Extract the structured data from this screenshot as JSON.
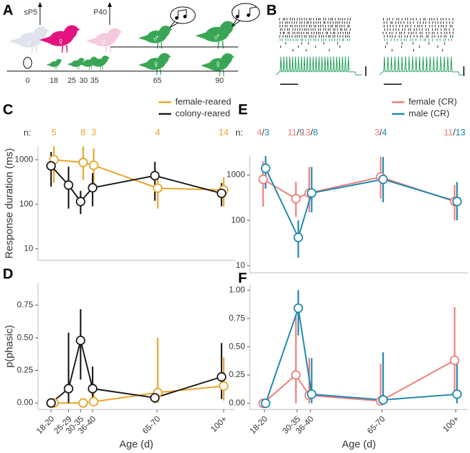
{
  "panel_labels": [
    "A",
    "B",
    "C",
    "D",
    "E",
    "F"
  ],
  "schematic": {
    "time_markers": [
      "≤P5",
      "P40"
    ],
    "ages": [
      0,
      18,
      25,
      30,
      35,
      65,
      90
    ],
    "male_symbol": "♂",
    "female_symbol": "♀"
  },
  "chart_data": [
    {
      "type": "line",
      "ylabel": "Response duration (ms)",
      "log_y": true,
      "ylim": [
        5.5,
        2000
      ],
      "yticks": [
        10,
        100,
        1000
      ],
      "xlim": [
        13,
        103
      ],
      "legend": "top-right",
      "n_label": "n:",
      "series": [
        {
          "name": "female-reared",
          "color": "#e8a426",
          "x": [
            20.3,
            33.7,
            38.5,
            67.8,
            98
          ],
          "values": [
            1000,
            870,
            750,
            230,
            210
          ],
          "ci_low": [
            300,
            350,
            250,
            80,
            90
          ],
          "ci_high": [
            2000,
            2000,
            1800,
            500,
            400
          ],
          "n": [
            5,
            8,
            3,
            4,
            14
          ]
        },
        {
          "name": "colony-reared",
          "color": "#1a1a1a",
          "x": [
            19,
            27,
            32.5,
            38,
            66.5,
            97
          ],
          "values": [
            730,
            270,
            115,
            235,
            440,
            176
          ],
          "ci_low": [
            250,
            80,
            60,
            90,
            120,
            90
          ],
          "ci_high": [
            1500,
            700,
            200,
            500,
            900,
            300
          ]
        }
      ]
    },
    {
      "type": "line",
      "ylabel": "p(phasic)",
      "xlabel": "Age (d)",
      "ylim": [
        -0.05,
        0.92
      ],
      "yticks": [
        {
          "value": 0,
          "label": "0.00"
        },
        {
          "value": 0.25,
          "label": "0.25"
        },
        {
          "value": 0.5,
          "label": "0.50"
        },
        {
          "value": 0.75,
          "label": "0.75"
        }
      ],
      "xlim": [
        13,
        103
      ],
      "xticks": [
        {
          "value": 19,
          "label": "18-20"
        },
        {
          "value": 27,
          "label": "25-29"
        },
        {
          "value": 32.5,
          "label": "30-35"
        },
        {
          "value": 38,
          "label": "36-40"
        },
        {
          "value": 67.5,
          "label": "65-70"
        },
        {
          "value": 98,
          "label": "100+"
        }
      ],
      "series": [
        {
          "color": "#e8a426",
          "x": [
            20.3,
            33.7,
            38.5,
            67.8,
            98
          ],
          "values": [
            0,
            0,
            0.01,
            0.08,
            0.13
          ],
          "ci_low": [
            0,
            0,
            0,
            0,
            0.02
          ],
          "ci_high": [
            0.02,
            0.03,
            0.12,
            0.5,
            0.35
          ]
        },
        {
          "color": "#1a1a1a",
          "x": [
            19,
            27,
            32.5,
            38,
            66.5,
            97
          ],
          "values": [
            0,
            0.11,
            0.48,
            0.11,
            0.04,
            0.2
          ],
          "ci_low": [
            0,
            0,
            0.18,
            0,
            0,
            0.03
          ],
          "ci_high": [
            0.02,
            0.54,
            0.72,
            0.28,
            0.1,
            0.46
          ]
        }
      ]
    },
    {
      "type": "line",
      "log_y": true,
      "ylim": [
        7,
        2700
      ],
      "yticks": [
        10,
        100,
        1000
      ],
      "xlim": [
        13,
        103
      ],
      "legend": "top-right",
      "n_label": "n:",
      "n_separator": "/",
      "series": [
        {
          "name": "female (CR)",
          "color": "#ee7c78",
          "x": [
            18.5,
            32,
            37.5,
            67,
            97.5
          ],
          "values": [
            800,
            300,
            400,
            900,
            260
          ],
          "ci_low": [
            200,
            120,
            150,
            300,
            100
          ],
          "ci_high": [
            2000,
            700,
            1500,
            2500,
            600
          ],
          "n": [
            4,
            11,
            13,
            3,
            11
          ]
        },
        {
          "name": "male (CR)",
          "color": "#1c87ae",
          "x": [
            19.5,
            33,
            38.5,
            68,
            98.5
          ],
          "values": [
            1400,
            42,
            400,
            800,
            260
          ],
          "ci_low": [
            500,
            15,
            150,
            250,
            100
          ],
          "ci_high": [
            2600,
            100,
            1500,
            2500,
            700
          ],
          "n": [
            3,
            9,
            8,
            4,
            13
          ]
        }
      ]
    },
    {
      "type": "line",
      "xlabel": "Age (d)",
      "ylim": [
        -0.055,
        1.05
      ],
      "yticks": [
        {
          "value": 0,
          "label": "0.00"
        },
        {
          "value": 0.25,
          "label": "0.25"
        },
        {
          "value": 0.5,
          "label": "0.50"
        },
        {
          "value": 0.75,
          "label": "0.75"
        },
        {
          "value": 1,
          "label": "1.00"
        }
      ],
      "xlim": [
        13,
        103
      ],
      "xticks": [
        {
          "value": 19,
          "label": "18-20"
        },
        {
          "value": 32.5,
          "label": "30-35"
        },
        {
          "value": 38,
          "label": "36-40"
        },
        {
          "value": 67.5,
          "label": "65-70"
        },
        {
          "value": 98,
          "label": "100+"
        }
      ],
      "series": [
        {
          "color": "#ee7c78",
          "x": [
            18.5,
            32,
            37.5,
            67,
            97.5
          ],
          "values": [
            0,
            0.25,
            0.07,
            0.02,
            0.38
          ],
          "ci_low": [
            0,
            0,
            0,
            0,
            0.05
          ],
          "ci_high": [
            0.02,
            0.78,
            0.4,
            0.35,
            0.85
          ]
        },
        {
          "color": "#1c87ae",
          "x": [
            19.5,
            33,
            38.5,
            68,
            98.5
          ],
          "values": [
            0,
            0.84,
            0.08,
            0.03,
            0.08
          ],
          "ci_low": [
            0,
            0.6,
            0,
            0,
            0
          ],
          "ci_high": [
            0.02,
            1,
            0.4,
            0.45,
            0.35
          ]
        }
      ]
    }
  ]
}
